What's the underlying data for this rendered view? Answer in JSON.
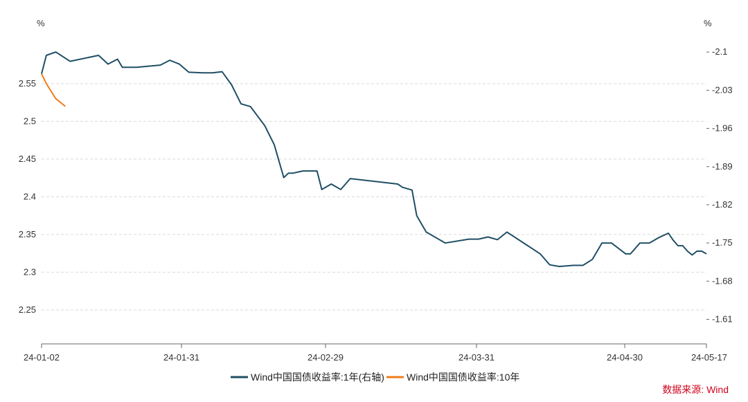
{
  "chart_data": {
    "type": "line",
    "left_unit": "%",
    "right_unit": "%",
    "x_tick_labels": [
      "24-01-02",
      "24-01-31",
      "24-02-29",
      "24-03-31",
      "24-04-30",
      "24-05-17"
    ],
    "y_left_ticks": [
      "2.25",
      "2.3",
      "2.35",
      "2.4",
      "2.45",
      "2.5",
      "2.55"
    ],
    "y_right_ticks": [
      "1.61",
      "1.68",
      "1.75",
      "1.82",
      "1.89",
      "1.96",
      "2.03",
      "2.1"
    ],
    "ylim_left": [
      2.205,
      2.615
    ],
    "ylim_right": [
      1.565,
      2.132
    ],
    "grid": true,
    "legend_position": "bottom",
    "series": [
      {
        "name": "Wind中国国债收益率:1年(右轴)",
        "axis": "right",
        "color": "#1f4e64",
        "points": [
          [
            "2024-01-02",
            2.06
          ],
          [
            "2024-01-03",
            2.094
          ],
          [
            "2024-01-05",
            2.1
          ],
          [
            "2024-01-08",
            2.083
          ],
          [
            "2024-01-14",
            2.094
          ],
          [
            "2024-01-16",
            2.078
          ],
          [
            "2024-01-18",
            2.087
          ],
          [
            "2024-01-19",
            2.072
          ],
          [
            "2024-01-22",
            2.072
          ],
          [
            "2024-01-27",
            2.076
          ],
          [
            "2024-01-29",
            2.085
          ],
          [
            "2024-01-31",
            2.078
          ],
          [
            "2024-02-02",
            2.063
          ],
          [
            "2024-02-05",
            2.062
          ],
          [
            "2024-02-07",
            2.062
          ],
          [
            "2024-02-09",
            2.064
          ],
          [
            "2024-02-11",
            2.04
          ],
          [
            "2024-02-13",
            2.005
          ],
          [
            "2024-02-15",
            2.0
          ],
          [
            "2024-02-18",
            1.965
          ],
          [
            "2024-02-20",
            1.93
          ],
          [
            "2024-02-22",
            1.87
          ],
          [
            "2024-02-23",
            1.878
          ],
          [
            "2024-02-24",
            1.878
          ],
          [
            "2024-02-26",
            1.882
          ],
          [
            "2024-02-28",
            1.882
          ],
          [
            "2024-02-29",
            1.882
          ],
          [
            "2024-03-01",
            1.848
          ],
          [
            "2024-03-03",
            1.858
          ],
          [
            "2024-03-05",
            1.848
          ],
          [
            "2024-03-07",
            1.868
          ],
          [
            "2024-03-17",
            1.858
          ],
          [
            "2024-03-18",
            1.852
          ],
          [
            "2024-03-20",
            1.847
          ],
          [
            "2024-03-21",
            1.8
          ],
          [
            "2024-03-23",
            1.77
          ],
          [
            "2024-03-27",
            1.75
          ],
          [
            "2024-04-01",
            1.757
          ],
          [
            "2024-04-03",
            1.757
          ],
          [
            "2024-04-05",
            1.761
          ],
          [
            "2024-04-07",
            1.756
          ],
          [
            "2024-04-09",
            1.77
          ],
          [
            "2024-04-16",
            1.73
          ],
          [
            "2024-04-18",
            1.71
          ],
          [
            "2024-04-20",
            1.707
          ],
          [
            "2024-04-23",
            1.709
          ],
          [
            "2024-04-25",
            1.709
          ],
          [
            "2024-04-27",
            1.72
          ],
          [
            "2024-04-29",
            1.75
          ],
          [
            "2024-05-01",
            1.75
          ],
          [
            "2024-05-04",
            1.73
          ],
          [
            "2024-05-05",
            1.73
          ],
          [
            "2024-05-07",
            1.75
          ],
          [
            "2024-05-09",
            1.75
          ],
          [
            "2024-05-11",
            1.76
          ],
          [
            "2024-05-13",
            1.768
          ],
          [
            "2024-05-14",
            1.755
          ],
          [
            "2024-05-15",
            1.745
          ],
          [
            "2024-05-16",
            1.745
          ],
          [
            "2024-05-17",
            1.735
          ],
          [
            "2024-05-18",
            1.728
          ],
          [
            "2024-05-19",
            1.735
          ],
          [
            "2024-05-20",
            1.735
          ],
          [
            "2024-05-21",
            1.73
          ]
        ]
      },
      {
        "name": "Wind中国国债收益率:10年",
        "axis": "left",
        "color": "#f07c1b",
        "points": [
          [
            "2024-01-02",
            2.563
          ],
          [
            "2024-01-03",
            2.55
          ],
          [
            "2024-01-05",
            2.53
          ],
          [
            "2024-01-07",
            2.52
          ]
        ]
      }
    ]
  },
  "legend": {
    "series_1": "Wind中国国债收益率:1年(右轴)",
    "series_2": "Wind中国国债收益率:10年"
  },
  "source": "数据来源: Wind"
}
